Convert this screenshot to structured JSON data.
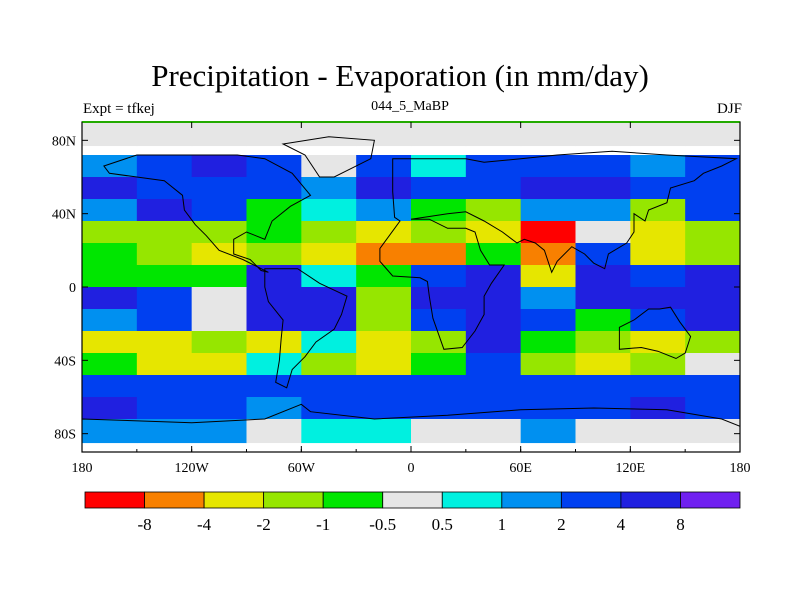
{
  "title": "Precipitation - Evaporation (in mm/day)",
  "left_label": "Expt = tfkej",
  "center_label": "044_5_MaBP",
  "right_label": "DJF",
  "x_ticks": [
    "180",
    "120W",
    "60W",
    "0",
    "60E",
    "120E",
    "180"
  ],
  "y_ticks": [
    "80N",
    "40N",
    "0",
    "40S",
    "80S"
  ],
  "colorbar": {
    "colors": [
      "#ff0000",
      "#f88000",
      "#e6e600",
      "#96e600",
      "#00e600",
      "#e6e6e6",
      "#00f0e0",
      "#0090f0",
      "#0040f0",
      "#2020e0",
      "#7020f0"
    ],
    "labels": [
      "-8",
      "-4",
      "-2",
      "-1",
      "-0.5",
      "0.5",
      "1",
      "2",
      "4",
      "8"
    ]
  },
  "chart_data": {
    "type": "heatmap",
    "variable": "Precipitation - Evaporation",
    "units": "mm/day",
    "experiment": "tfkej",
    "time_label": "044_5_MaBP",
    "season": "DJF",
    "x_range": [
      -180,
      180
    ],
    "y_range": [
      -90,
      90
    ],
    "contour_levels": [
      -8,
      -4,
      -2,
      -1,
      -0.5,
      0.5,
      1,
      2,
      4,
      8
    ],
    "lon_bands": [
      -180,
      -150,
      -120,
      -90,
      -60,
      -30,
      0,
      30,
      60,
      90,
      120,
      150
    ],
    "lat_bands": [
      90,
      72,
      60,
      48,
      36,
      24,
      12,
      0,
      -12,
      -24,
      -36,
      -48,
      -60,
      -72
    ],
    "values": [
      [
        0.3,
        0.3,
        0.3,
        0.3,
        0.3,
        0.3,
        0.3,
        0.3,
        0.3,
        0.3,
        0.3,
        0.3
      ],
      [
        1.5,
        2.5,
        4.5,
        3.0,
        0.3,
        2.0,
        0.8,
        3.0,
        2.5,
        2.0,
        1.5,
        2.0
      ],
      [
        5.0,
        3.0,
        3.0,
        2.0,
        1.0,
        6.0,
        2.0,
        3.0,
        4.0,
        5.0,
        3.0,
        3.0
      ],
      [
        1.5,
        4.5,
        2.5,
        -0.8,
        0.8,
        1.5,
        -0.8,
        -1.5,
        1.5,
        1.0,
        -1.5,
        3.0
      ],
      [
        -1.5,
        -2.0,
        -1.5,
        -1.0,
        -2.0,
        -3.0,
        -2.0,
        -4.0,
        -9.0,
        0.3,
        -4.0,
        -2.0
      ],
      [
        -1.0,
        -1.5,
        -3.0,
        -2.0,
        -2.5,
        -5.0,
        -5.0,
        -0.8,
        -4.5,
        3.0,
        -4.0,
        -1.5
      ],
      [
        -1.0,
        -1.0,
        -0.8,
        5.0,
        0.8,
        -1.0,
        3.0,
        4.0,
        -3.0,
        5.0,
        3.0,
        5.0
      ],
      [
        6.0,
        3.0,
        0.3,
        5.0,
        5.0,
        -1.5,
        5.0,
        4.0,
        1.5,
        5.0,
        4.0,
        5.0
      ],
      [
        1.5,
        2.0,
        0.3,
        5.0,
        4.0,
        -2.0,
        2.5,
        5.0,
        3.0,
        -0.8,
        2.0,
        4.0
      ],
      [
        -2.5,
        -3.0,
        -2.0,
        -3.0,
        0.8,
        -3.0,
        -2.0,
        4.0,
        -0.8,
        -2.0,
        -3.0,
        -1.5
      ],
      [
        -0.8,
        -3.0,
        -2.5,
        0.8,
        -2.0,
        -2.5,
        -1.0,
        3.0,
        -1.5,
        -3.0,
        -2.0,
        0.3
      ],
      [
        3.0,
        2.0,
        2.0,
        2.0,
        2.0,
        2.0,
        2.0,
        2.0,
        2.0,
        2.5,
        3.0,
        3.0
      ],
      [
        4.5,
        2.5,
        2.5,
        1.5,
        2.5,
        2.0,
        2.5,
        2.0,
        2.5,
        2.0,
        4.0,
        3.0
      ],
      [
        1.5,
        1.0,
        1.0,
        0.3,
        0.8,
        0.8,
        0.3,
        0.3,
        1.0,
        0.3,
        0.3,
        0.3
      ]
    ]
  }
}
